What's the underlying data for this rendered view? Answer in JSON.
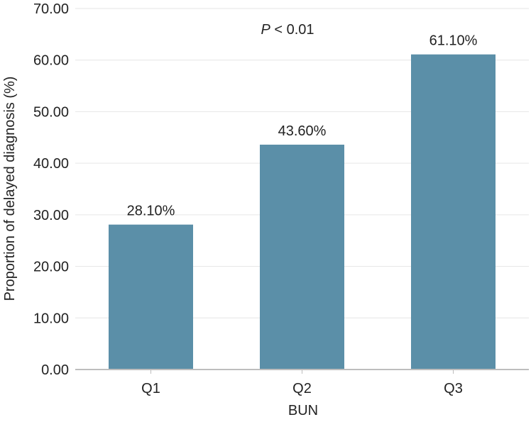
{
  "chart_data": {
    "type": "bar",
    "categories": [
      "Q1",
      "Q2",
      "Q3"
    ],
    "values": [
      28.1,
      43.6,
      61.1
    ],
    "data_labels": [
      "28.10%",
      "43.60%",
      "61.10%"
    ],
    "xlabel": "BUN",
    "ylabel": "Proportion of delayed diagnosis (%)",
    "ylim": [
      0,
      70
    ],
    "yticks": [
      0,
      10,
      20,
      30,
      40,
      50,
      60,
      70
    ],
    "ytick_labels": [
      "0.00",
      "10.00",
      "20.00",
      "30.00",
      "40.00",
      "50.00",
      "60.00",
      "70.00"
    ],
    "annotation": {
      "italic": "P",
      "text": " < 0.01"
    },
    "grid": true,
    "grid_color": "#e6e6e6",
    "bar_color": "#5b8fa8",
    "axis_color": "#bdbdbd"
  }
}
